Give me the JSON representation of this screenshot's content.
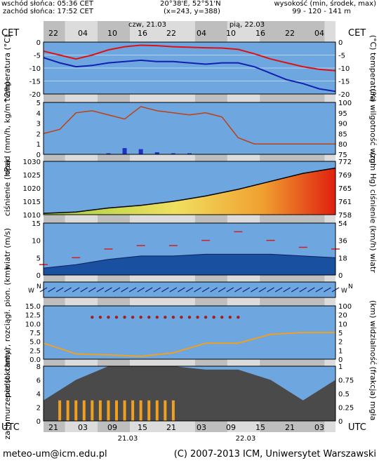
{
  "header": {
    "sunrise": "wschód słońca: 05:36 CET",
    "sunset": "zachód słońca: 17:52 CET",
    "coords": "20°38'E, 52°51'N",
    "grid": "(x=243, y=388)",
    "height_label": "wysokość (min, środek, max)",
    "height_values": "99 - 120 - 141 m"
  },
  "footer": {
    "email": "meteo-um@icm.edu.pl",
    "copyright": "(C) 2007-2013 ICM, Uniwersytet Warszawski"
  },
  "colors": {
    "band_light": "#dcdcdc",
    "band_dark": "#bebebe",
    "panel_bg": "#6ea6e0",
    "panel_shade": "#5c8fcc",
    "temp": "#e01010",
    "dew": "#1020b0",
    "precip": "#2030c0",
    "humidity": "#c04010",
    "wind_gust": "#d02020",
    "cloud_dark": "#4a4a4a",
    "cloud_bar": "#f0a020",
    "fog": "#ffffff"
  },
  "chart_data": {
    "type": "line",
    "top_axis": {
      "label": "CET",
      "days": [
        "czw, 21.03",
        "pią, 22.03"
      ],
      "ticks": [
        "22",
        "04",
        "10",
        "16",
        "22",
        "04",
        "10",
        "16",
        "22",
        "04"
      ]
    },
    "bottom_axis": {
      "label": "UTC",
      "days": [
        "21.03",
        "22.03"
      ],
      "ticks": [
        "21",
        "03",
        "09",
        "15",
        "21",
        "03",
        "09",
        "15",
        "21",
        "03"
      ]
    },
    "panels": [
      {
        "id": "temperature",
        "left_label": "temperatura (°C)",
        "right_label": "(°C) temperatura",
        "ylim": [
          -20,
          0
        ],
        "left_ticks": [
          "0",
          "-5",
          "-10",
          "-15",
          "-20"
        ],
        "right_ticks": [
          "0",
          "-5",
          "-10",
          "-15",
          "-20"
        ],
        "x_hours": [
          0,
          3,
          6,
          9,
          12,
          15,
          18,
          21,
          24,
          27,
          30,
          33,
          36,
          39,
          42,
          45,
          48,
          51,
          54
        ],
        "series": [
          {
            "role": "temperature",
            "values": [
              -3.5,
              -5,
              -6.5,
              -5,
              -3,
              -1.8,
              -1.2,
              -1.4,
              -1.8,
              -2,
              -2.2,
              -2.3,
              -2.8,
              -4.5,
              -6.5,
              -8,
              -9.5,
              -10.5,
              -11
            ]
          },
          {
            "role": "dew point",
            "values": [
              -6,
              -8,
              -9.5,
              -9,
              -8,
              -7.5,
              -7,
              -7.5,
              -7.5,
              -8,
              -8.5,
              -8,
              -8,
              -9.5,
              -12,
              -14.5,
              -16,
              -18,
              -19
            ]
          }
        ]
      },
      {
        "id": "precipitation",
        "left_label": "opad (mm/h, kg/m^2/h)",
        "right_label": "(%) wilgotność wzgl.",
        "ylim_left": [
          0,
          5
        ],
        "ylim_right": [
          75,
          100
        ],
        "left_ticks": [
          "5",
          "4",
          "3",
          "2",
          "1",
          "0"
        ],
        "right_ticks": [
          "100",
          "95",
          "90",
          "85",
          "80",
          "75"
        ],
        "x_hours": [
          0,
          3,
          6,
          9,
          12,
          15,
          18,
          21,
          24,
          27,
          30,
          33,
          36,
          39,
          42,
          45,
          48,
          51,
          54
        ],
        "series": [
          {
            "role": "relative humidity",
            "values": [
              85,
              87,
              95,
              96,
              94,
              92,
              98,
              96,
              95,
              94,
              95,
              93,
              83,
              80,
              80,
              80,
              80,
              80,
              80
            ]
          },
          {
            "role": "precipitation",
            "values": [
              0,
              0,
              0,
              0,
              0.1,
              0.6,
              0.5,
              0.2,
              0.1,
              0.1,
              0,
              0,
              0,
              0,
              0,
              0,
              0,
              0,
              0
            ]
          }
        ]
      },
      {
        "id": "pressure",
        "left_label": "ciśnienie (hPa)",
        "right_label": "(mm Hg) ciśnienie",
        "ylim": [
          1010,
          1030
        ],
        "left_ticks": [
          "1030",
          "1025",
          "1020",
          "1015",
          "1010"
        ],
        "right_ticks": [
          "772",
          "769",
          "765",
          "761",
          "758"
        ],
        "x_hours": [
          0,
          6,
          12,
          18,
          24,
          30,
          36,
          42,
          48,
          54
        ],
        "series": [
          {
            "role": "pressure",
            "values": [
              1010.5,
              1011,
              1012.5,
              1013.5,
              1015,
              1017,
              1019.5,
              1022.5,
              1025.5,
              1027.5
            ]
          }
        ]
      },
      {
        "id": "wind",
        "left_label": "wiatr (m/s)",
        "right_label": "(km/h) wiatr",
        "ylim": [
          0,
          15
        ],
        "left_ticks": [
          "15",
          "10",
          "5",
          "0"
        ],
        "right_ticks": [
          "54",
          "36",
          "18",
          "0"
        ],
        "x_hours": [
          0,
          6,
          12,
          18,
          24,
          30,
          36,
          42,
          48,
          54
        ],
        "series": [
          {
            "role": "mean wind",
            "values": [
              2,
              3,
              4.5,
              5.5,
              5.5,
              6,
              6,
              6,
              5.5,
              5
            ]
          },
          {
            "role": "gusts",
            "values": [
              3,
              5,
              7.5,
              8.5,
              8.5,
              10,
              12.5,
              10,
              8,
              7.5
            ]
          }
        ]
      },
      {
        "id": "direction",
        "left_label": "N S E W",
        "right_label": "N S E W"
      },
      {
        "id": "visibility",
        "left_label": "podst. chmur, rozciągł. pion. (km)",
        "right_label": "(km) widzialność",
        "ylim_left": [
          0,
          15
        ],
        "left_ticks": [
          "15.0",
          "12.5",
          "10.0",
          "7.5",
          "5.0",
          "2.5",
          "0.0"
        ],
        "right_ticks": [
          "100",
          "20",
          "10",
          "5",
          "2",
          "1",
          "0"
        ],
        "x_hours": [
          0,
          6,
          12,
          18,
          24,
          30,
          36,
          42,
          48,
          54
        ],
        "series": [
          {
            "role": "visibility",
            "values": [
              4.5,
              1.5,
              1.2,
              0.8,
              1.8,
              4.5,
              4.5,
              7,
              7.5,
              7.5
            ]
          }
        ]
      },
      {
        "id": "cloud",
        "left_label": "zachmurzenie (oktanty)",
        "right_label": "(frakcja) mgła",
        "ylim_left": [
          0,
          8
        ],
        "left_ticks": [
          "8",
          "6",
          "4",
          "2",
          "0"
        ],
        "right_ticks": [
          "1",
          "0.75",
          "0.5",
          "0.25",
          "0"
        ],
        "x_hours": [
          0,
          6,
          12,
          18,
          24,
          30,
          36,
          42,
          48,
          54
        ],
        "series": [
          {
            "role": "total cloud",
            "values": [
              3,
              6,
              8,
              8,
              8,
              7.5,
              7.5,
              6,
              3,
              6
            ]
          }
        ]
      }
    ]
  }
}
